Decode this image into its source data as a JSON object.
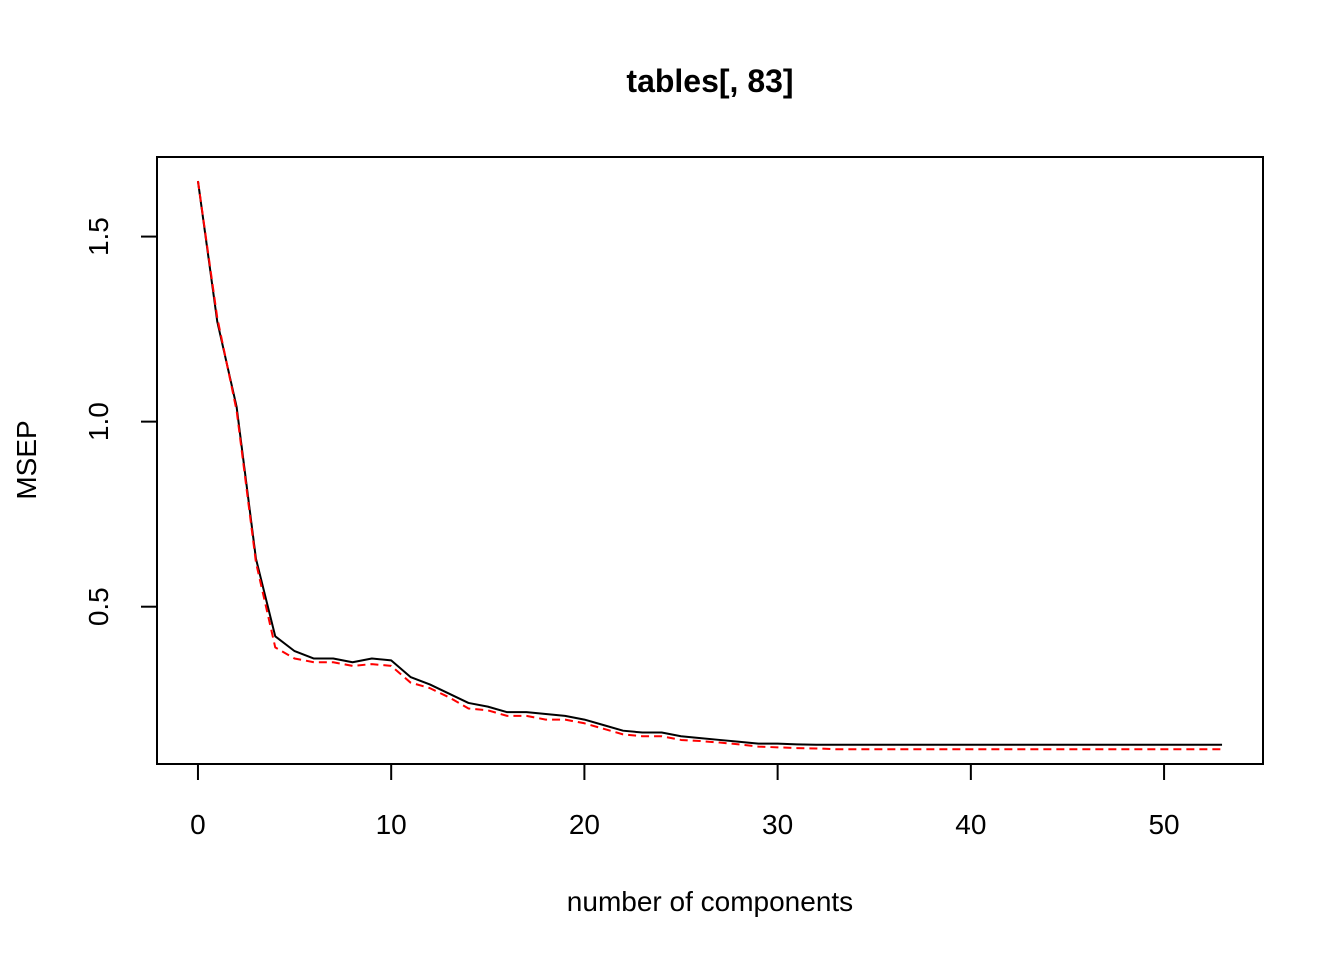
{
  "chart_data": {
    "type": "line",
    "title": "tables[, 83]",
    "xlabel": "number of components",
    "ylabel": "MSEP",
    "xlim": [
      -2.12,
      55.12
    ],
    "ylim": [
      0.075,
      1.715
    ],
    "x_ticks": [
      0,
      10,
      20,
      30,
      40,
      50
    ],
    "y_ticks": [
      0.5,
      1.0,
      1.5
    ],
    "x_tick_labels": [
      "0",
      "10",
      "20",
      "30",
      "40",
      "50"
    ],
    "y_tick_labels": [
      "0.5",
      "1.0",
      "1.5"
    ],
    "grid": false,
    "legend": "none",
    "x": [
      0,
      1,
      2,
      3,
      4,
      5,
      6,
      7,
      8,
      9,
      10,
      11,
      12,
      13,
      14,
      15,
      16,
      17,
      18,
      19,
      20,
      21,
      22,
      23,
      24,
      25,
      26,
      27,
      28,
      29,
      30,
      31,
      32,
      33,
      34,
      35,
      36,
      37,
      38,
      39,
      40,
      41,
      42,
      43,
      44,
      45,
      46,
      47,
      48,
      49,
      50,
      51,
      52,
      53
    ],
    "series": [
      {
        "color": "#000000",
        "dash": "solid",
        "values": [
          1.65,
          1.27,
          1.04,
          0.63,
          0.42,
          0.38,
          0.36,
          0.36,
          0.35,
          0.36,
          0.355,
          0.31,
          0.29,
          0.265,
          0.24,
          0.23,
          0.215,
          0.215,
          0.21,
          0.205,
          0.195,
          0.18,
          0.165,
          0.16,
          0.16,
          0.15,
          0.145,
          0.14,
          0.135,
          0.13,
          0.13,
          0.128,
          0.127,
          0.127,
          0.127,
          0.127,
          0.127,
          0.127,
          0.127,
          0.127,
          0.127,
          0.127,
          0.127,
          0.127,
          0.127,
          0.127,
          0.127,
          0.127,
          0.127,
          0.127,
          0.127,
          0.127,
          0.127,
          0.127
        ]
      },
      {
        "color": "#ff0000",
        "dash": "dashed",
        "values": [
          1.65,
          1.28,
          1.03,
          0.62,
          0.39,
          0.36,
          0.35,
          0.35,
          0.34,
          0.345,
          0.34,
          0.295,
          0.28,
          0.255,
          0.225,
          0.22,
          0.205,
          0.205,
          0.195,
          0.195,
          0.185,
          0.17,
          0.155,
          0.15,
          0.15,
          0.14,
          0.137,
          0.133,
          0.128,
          0.122,
          0.12,
          0.118,
          0.117,
          0.115,
          0.115,
          0.115,
          0.115,
          0.115,
          0.115,
          0.115,
          0.115,
          0.115,
          0.115,
          0.115,
          0.115,
          0.115,
          0.115,
          0.115,
          0.115,
          0.115,
          0.115,
          0.115,
          0.115,
          0.115
        ]
      }
    ]
  }
}
